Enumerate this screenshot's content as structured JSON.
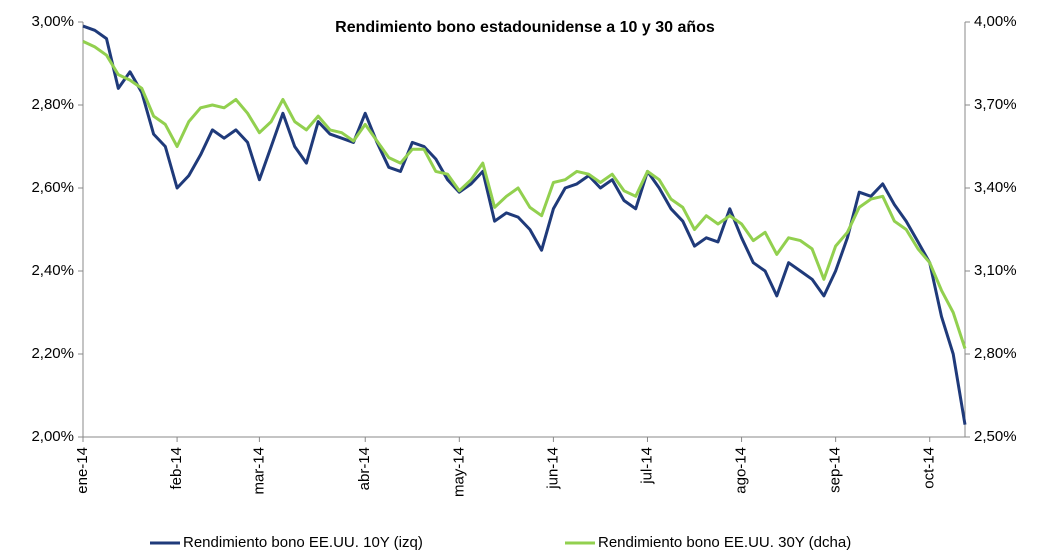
{
  "chart_data": {
    "type": "line",
    "title": "Rendimiento bono estadounidense a 10 y 30 años",
    "categories": [
      "ene-14",
      null,
      null,
      null,
      null,
      null,
      null,
      null,
      "feb-14",
      null,
      null,
      null,
      null,
      null,
      null,
      "mar-14",
      null,
      null,
      null,
      null,
      null,
      null,
      null,
      null,
      "abr-14",
      null,
      null,
      null,
      null,
      null,
      null,
      null,
      "may-14",
      null,
      null,
      null,
      null,
      null,
      null,
      null,
      "jun-14",
      null,
      null,
      null,
      null,
      null,
      null,
      null,
      "jul-14",
      null,
      null,
      null,
      null,
      null,
      null,
      null,
      "ago-14",
      null,
      null,
      null,
      null,
      null,
      null,
      null,
      "sep-14",
      null,
      null,
      null,
      null,
      null,
      null,
      null,
      "oct-14",
      null,
      null,
      null
    ],
    "series": [
      {
        "name": "Rendimiento bono EE.UU. 10Y (izq)",
        "color": "#1f3a7a",
        "axis": "y",
        "values": [
          2.99,
          2.98,
          2.96,
          2.84,
          2.88,
          2.83,
          2.73,
          2.7,
          2.6,
          2.63,
          2.68,
          2.74,
          2.72,
          2.74,
          2.71,
          2.62,
          2.7,
          2.78,
          2.7,
          2.66,
          2.76,
          2.73,
          2.72,
          2.71,
          2.78,
          2.71,
          2.65,
          2.64,
          2.71,
          2.7,
          2.67,
          2.62,
          2.59,
          2.61,
          2.64,
          2.52,
          2.54,
          2.53,
          2.5,
          2.45,
          2.55,
          2.6,
          2.61,
          2.63,
          2.6,
          2.62,
          2.57,
          2.55,
          2.64,
          2.6,
          2.55,
          2.52,
          2.46,
          2.48,
          2.47,
          2.55,
          2.48,
          2.42,
          2.4,
          2.34,
          2.42,
          2.4,
          2.38,
          2.34,
          2.4,
          2.48,
          2.59,
          2.58,
          2.61,
          2.56,
          2.52,
          2.47,
          2.42,
          2.29,
          2.2,
          2.03
        ]
      },
      {
        "name": "Rendimiento bono EE.UU. 30Y (dcha)",
        "color": "#92d04f",
        "axis": "y2",
        "values": [
          3.93,
          3.91,
          3.88,
          3.81,
          3.79,
          3.76,
          3.66,
          3.63,
          3.55,
          3.64,
          3.69,
          3.7,
          3.69,
          3.72,
          3.67,
          3.6,
          3.64,
          3.72,
          3.64,
          3.61,
          3.66,
          3.61,
          3.6,
          3.57,
          3.63,
          3.57,
          3.51,
          3.49,
          3.54,
          3.54,
          3.46,
          3.45,
          3.39,
          3.43,
          3.49,
          3.33,
          3.37,
          3.4,
          3.33,
          3.3,
          3.42,
          3.43,
          3.46,
          3.45,
          3.42,
          3.45,
          3.39,
          3.37,
          3.46,
          3.43,
          3.36,
          3.33,
          3.25,
          3.3,
          3.27,
          3.3,
          3.27,
          3.21,
          3.24,
          3.16,
          3.22,
          3.21,
          3.18,
          3.07,
          3.19,
          3.24,
          3.33,
          3.36,
          3.37,
          3.28,
          3.25,
          3.18,
          3.13,
          3.03,
          2.95,
          2.82
        ]
      }
    ],
    "ylim": [
      2.0,
      3.0
    ],
    "yticks": [
      {
        "value": 2.0,
        "label": "2,00%"
      },
      {
        "value": 2.2,
        "label": "2,20%"
      },
      {
        "value": 2.4,
        "label": "2,40%"
      },
      {
        "value": 2.6,
        "label": "2,60%"
      },
      {
        "value": 2.8,
        "label": "2,80%"
      },
      {
        "value": 3.0,
        "label": "3,00%"
      }
    ],
    "y2lim": [
      2.5,
      4.0
    ],
    "y2ticks": [
      {
        "value": 2.5,
        "label": "2,50%"
      },
      {
        "value": 2.8,
        "label": "2,80%"
      },
      {
        "value": 3.1,
        "label": "3,10%"
      },
      {
        "value": 3.4,
        "label": "3,40%"
      },
      {
        "value": 3.7,
        "label": "3,70%"
      },
      {
        "value": 4.0,
        "label": "4,00%"
      }
    ],
    "legend": "bottom"
  }
}
